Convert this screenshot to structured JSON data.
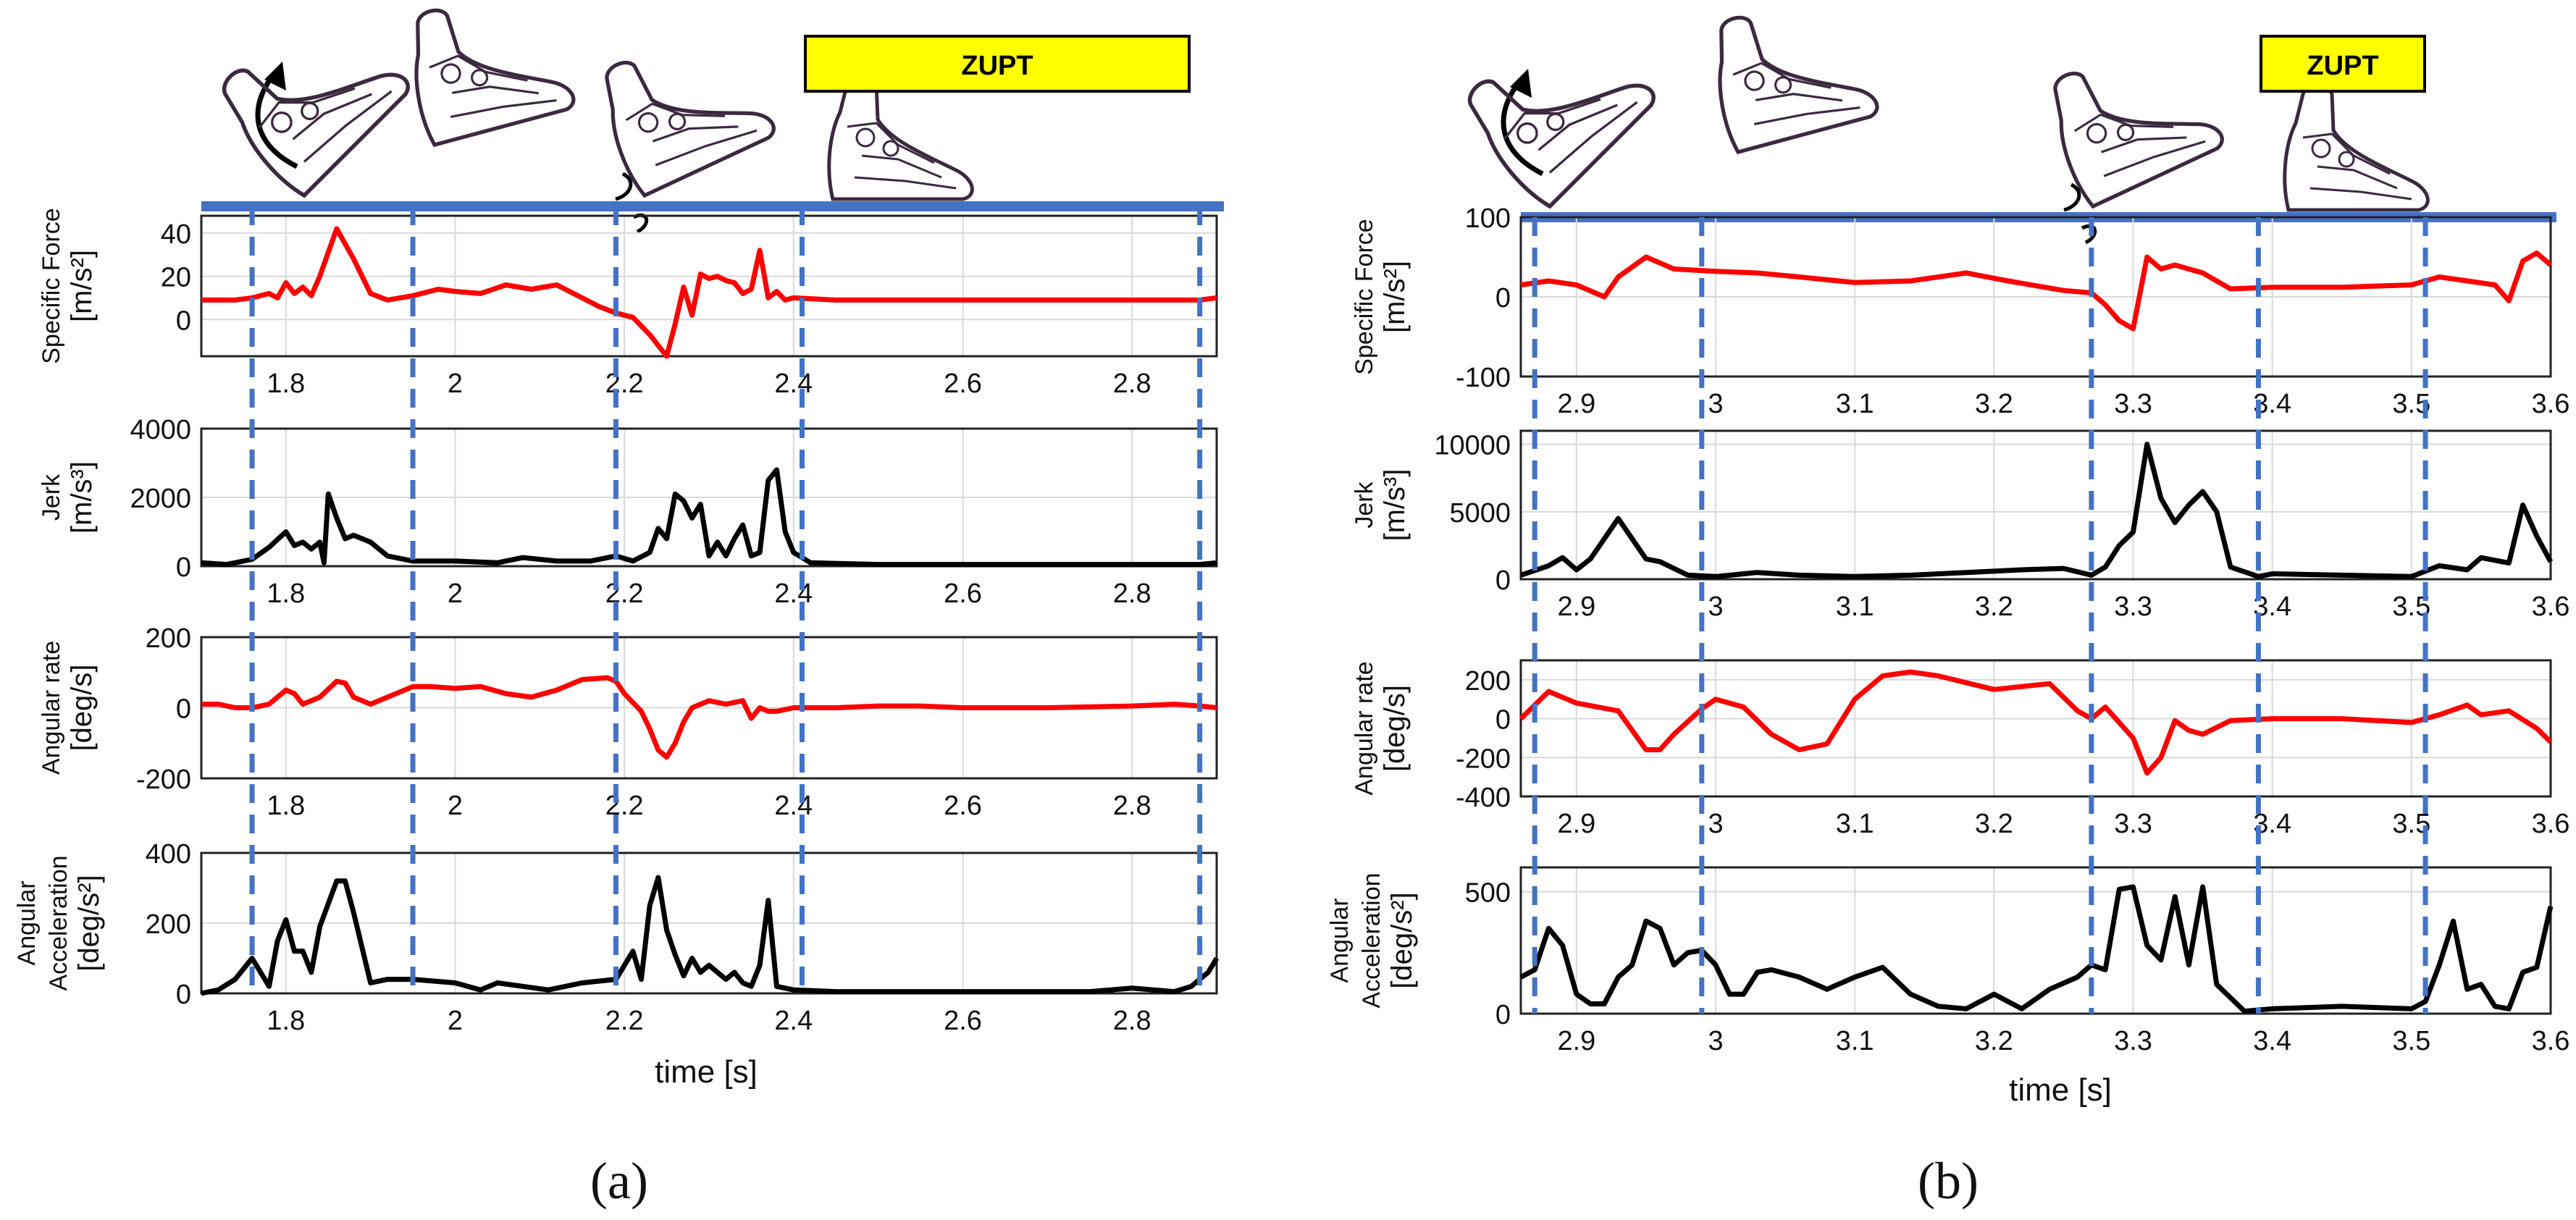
{
  "colors": {
    "specific_force": "#ff0000",
    "jerk": "#000000",
    "angular_rate": "#ff0000",
    "angular_acceleration": "#000000",
    "phase_lines": "#4472c4",
    "zupt_box": "#ffff00",
    "grid": "#d9d9d9"
  },
  "icons": [
    "arrow-curve-icon",
    "foot-heel-off-icon",
    "foot-swing-icon",
    "foot-heel-strike-icon",
    "foot-stance-icon"
  ],
  "panels": [
    {
      "label": "(a)",
      "zupt_label": "ZUPT",
      "xlabel": "time [s]",
      "x_range": [
        1.7,
        2.9
      ],
      "x_ticks": [
        1.8,
        2.0,
        2.2,
        2.4,
        2.6,
        2.8
      ],
      "x_tick_labels": [
        "1.8",
        "2",
        "2.2",
        "2.4",
        "2.6",
        "2.8"
      ],
      "phase_lines": [
        1.76,
        1.95,
        2.19,
        2.41,
        2.88
      ],
      "zupt_span": [
        2.41,
        2.88
      ]
    },
    {
      "label": "(b)",
      "zupt_label": "ZUPT",
      "xlabel": "time [s]",
      "x_range": [
        2.86,
        3.6
      ],
      "x_ticks": [
        2.9,
        3.0,
        3.1,
        3.2,
        3.3,
        3.4,
        3.5,
        3.6
      ],
      "x_tick_labels": [
        "2.9",
        "3",
        "3.1",
        "3.2",
        "3.3",
        "3.4",
        "3.5",
        "3.6"
      ],
      "phase_lines": [
        2.87,
        2.99,
        3.27,
        3.39,
        3.51
      ],
      "zupt_span": [
        3.39,
        3.51
      ]
    }
  ],
  "chart_data": [
    {
      "type": "line",
      "panel": "(a)",
      "ylabel": "Specific Force [m/s²]",
      "ylabel_lines": [
        "Specific Force",
        "[m/s²]"
      ],
      "ylim": [
        -17,
        48
      ],
      "yticks": [
        0,
        20,
        40
      ],
      "xlim": [
        1.7,
        2.9
      ],
      "xticks": [
        1.8,
        2.0,
        2.2,
        2.4,
        2.6,
        2.8
      ],
      "series": [
        {
          "x": [
            1.7,
            1.74,
            1.76,
            1.78,
            1.79,
            1.8,
            1.81,
            1.82,
            1.83,
            1.84,
            1.86,
            1.88,
            1.9,
            1.92,
            1.95,
            1.98,
            2.0,
            2.03,
            2.06,
            2.09,
            2.12,
            2.15,
            2.17,
            2.19,
            2.21,
            2.22,
            2.23,
            2.24,
            2.25,
            2.26,
            2.27,
            2.28,
            2.29,
            2.3,
            2.31,
            2.32,
            2.33,
            2.34,
            2.35,
            2.36,
            2.37,
            2.38,
            2.39,
            2.4,
            2.45,
            2.55,
            2.65,
            2.75,
            2.85,
            2.88,
            2.9
          ],
          "y": [
            9,
            9,
            10,
            12,
            10,
            17,
            12,
            15,
            11,
            20,
            42,
            28,
            12,
            9,
            11,
            14,
            13,
            12,
            16,
            14,
            16,
            10,
            6,
            3,
            1,
            -3,
            -7,
            -12,
            -18,
            -2,
            15,
            2,
            21,
            19,
            20,
            18,
            17,
            12,
            14,
            32,
            10,
            13,
            9,
            10,
            9,
            9,
            9,
            9,
            9,
            9,
            10
          ]
        }
      ]
    },
    {
      "type": "line",
      "panel": "(a)",
      "ylabel": "Jerk [m/s³]",
      "ylabel_lines": [
        "Jerk",
        "[m/s³]"
      ],
      "ylim": [
        0,
        4000
      ],
      "yticks": [
        0,
        2000,
        4000
      ],
      "xlim": [
        1.7,
        2.9
      ],
      "xticks": [
        1.8,
        2.0,
        2.2,
        2.4,
        2.6,
        2.8
      ],
      "series": [
        {
          "x": [
            1.7,
            1.73,
            1.76,
            1.78,
            1.8,
            1.81,
            1.82,
            1.83,
            1.84,
            1.845,
            1.85,
            1.86,
            1.87,
            1.88,
            1.9,
            1.92,
            1.95,
            2.0,
            2.05,
            2.08,
            2.12,
            2.16,
            2.19,
            2.21,
            2.23,
            2.24,
            2.25,
            2.26,
            2.27,
            2.28,
            2.29,
            2.3,
            2.31,
            2.32,
            2.33,
            2.34,
            2.35,
            2.36,
            2.37,
            2.38,
            2.39,
            2.4,
            2.42,
            2.5,
            2.6,
            2.7,
            2.8,
            2.88,
            2.9
          ],
          "y": [
            100,
            50,
            200,
            550,
            1000,
            600,
            700,
            500,
            700,
            100,
            2100,
            1400,
            800,
            900,
            700,
            300,
            150,
            150,
            100,
            250,
            150,
            150,
            300,
            150,
            400,
            1100,
            800,
            2100,
            1900,
            1400,
            1800,
            300,
            700,
            300,
            800,
            1200,
            300,
            400,
            2500,
            2800,
            1000,
            400,
            100,
            50,
            50,
            50,
            50,
            50,
            100
          ]
        }
      ]
    },
    {
      "type": "line",
      "panel": "(a)",
      "ylabel": "Angular rate [deg/s]",
      "ylabel_lines": [
        "Angular rate",
        "[deg/s]"
      ],
      "ylim": [
        -200,
        200
      ],
      "yticks": [
        -200,
        0,
        200
      ],
      "xlim": [
        1.7,
        2.9
      ],
      "xticks": [
        1.8,
        2.0,
        2.2,
        2.4,
        2.6,
        2.8
      ],
      "series": [
        {
          "x": [
            1.7,
            1.72,
            1.74,
            1.76,
            1.78,
            1.8,
            1.81,
            1.82,
            1.84,
            1.86,
            1.87,
            1.88,
            1.9,
            1.92,
            1.95,
            1.97,
            2.0,
            2.03,
            2.06,
            2.09,
            2.12,
            2.15,
            2.18,
            2.19,
            2.2,
            2.22,
            2.23,
            2.24,
            2.25,
            2.26,
            2.27,
            2.28,
            2.3,
            2.32,
            2.34,
            2.35,
            2.36,
            2.37,
            2.38,
            2.4,
            2.45,
            2.5,
            2.55,
            2.6,
            2.7,
            2.8,
            2.85,
            2.88,
            2.9
          ],
          "y": [
            10,
            10,
            0,
            0,
            10,
            50,
            40,
            10,
            30,
            75,
            70,
            30,
            10,
            30,
            60,
            60,
            55,
            60,
            40,
            30,
            50,
            80,
            85,
            75,
            40,
            -10,
            -60,
            -120,
            -140,
            -100,
            -40,
            0,
            20,
            10,
            20,
            -30,
            0,
            -10,
            -10,
            0,
            0,
            5,
            5,
            0,
            0,
            5,
            10,
            5,
            0
          ]
        }
      ]
    },
    {
      "type": "line",
      "panel": "(a)",
      "ylabel": "Angular Acceleration [deg/s²]",
      "ylabel_lines": [
        "Angular",
        "Acceleration",
        "[deg/s²]"
      ],
      "ylim": [
        0,
        400
      ],
      "yticks": [
        0,
        200,
        400
      ],
      "xlim": [
        1.7,
        2.9
      ],
      "xticks": [
        1.8,
        2.0,
        2.2,
        2.4,
        2.6,
        2.8
      ],
      "series": [
        {
          "x": [
            1.7,
            1.72,
            1.74,
            1.76,
            1.78,
            1.79,
            1.8,
            1.81,
            1.82,
            1.83,
            1.84,
            1.86,
            1.87,
            1.88,
            1.9,
            1.92,
            1.95,
            2.0,
            2.03,
            2.05,
            2.08,
            2.11,
            2.15,
            2.19,
            2.21,
            2.22,
            2.23,
            2.24,
            2.25,
            2.26,
            2.27,
            2.28,
            2.29,
            2.3,
            2.31,
            2.32,
            2.33,
            2.34,
            2.35,
            2.36,
            2.37,
            2.38,
            2.4,
            2.45,
            2.55,
            2.65,
            2.75,
            2.8,
            2.85,
            2.87,
            2.89,
            2.9
          ],
          "y": [
            0,
            10,
            40,
            100,
            20,
            150,
            210,
            120,
            120,
            60,
            190,
            320,
            320,
            230,
            30,
            40,
            40,
            30,
            10,
            30,
            20,
            10,
            30,
            40,
            120,
            40,
            250,
            330,
            180,
            110,
            50,
            100,
            60,
            80,
            60,
            40,
            60,
            30,
            20,
            80,
            265,
            20,
            10,
            5,
            5,
            5,
            5,
            15,
            5,
            20,
            60,
            100
          ]
        }
      ]
    },
    {
      "type": "line",
      "panel": "(b)",
      "ylabel": "Specific Force [m/s²]",
      "ylabel_lines": [
        "Specific Force",
        "[m/s²]"
      ],
      "ylim": [
        -100,
        100
      ],
      "yticks": [
        -100,
        0,
        100
      ],
      "xlim": [
        2.86,
        3.6
      ],
      "xticks": [
        2.9,
        3.0,
        3.1,
        3.2,
        3.3,
        3.4,
        3.5,
        3.6
      ],
      "series": [
        {
          "x": [
            2.86,
            2.88,
            2.9,
            2.92,
            2.93,
            2.95,
            2.97,
            3.0,
            3.03,
            3.06,
            3.1,
            3.14,
            3.18,
            3.21,
            3.25,
            3.27,
            3.28,
            3.29,
            3.3,
            3.31,
            3.32,
            3.33,
            3.35,
            3.37,
            3.4,
            3.45,
            3.5,
            3.52,
            3.54,
            3.56,
            3.57,
            3.58,
            3.59,
            3.6
          ],
          "y": [
            15,
            20,
            15,
            0,
            25,
            50,
            35,
            32,
            30,
            25,
            18,
            20,
            30,
            20,
            8,
            5,
            -10,
            -30,
            -40,
            50,
            35,
            40,
            30,
            10,
            12,
            12,
            15,
            25,
            20,
            15,
            -5,
            45,
            55,
            40
          ]
        }
      ]
    },
    {
      "type": "line",
      "panel": "(b)",
      "ylabel": "Jerk [m/s³]",
      "ylabel_lines": [
        "Jerk",
        "[m/s³]"
      ],
      "ylim": [
        0,
        11000
      ],
      "yticks": [
        0,
        5000,
        10000
      ],
      "xlim": [
        2.86,
        3.6
      ],
      "xticks": [
        2.9,
        3.0,
        3.1,
        3.2,
        3.3,
        3.4,
        3.5,
        3.6
      ],
      "series": [
        {
          "x": [
            2.86,
            2.88,
            2.89,
            2.9,
            2.91,
            2.92,
            2.93,
            2.94,
            2.95,
            2.96,
            2.98,
            3.0,
            3.03,
            3.06,
            3.1,
            3.14,
            3.18,
            3.22,
            3.25,
            3.27,
            3.28,
            3.29,
            3.3,
            3.31,
            3.32,
            3.33,
            3.34,
            3.35,
            3.36,
            3.37,
            3.39,
            3.4,
            3.45,
            3.5,
            3.52,
            3.54,
            3.55,
            3.57,
            3.58,
            3.59,
            3.6
          ],
          "y": [
            300,
            1000,
            1600,
            700,
            1500,
            3000,
            4500,
            3000,
            1500,
            1300,
            300,
            200,
            500,
            300,
            200,
            300,
            500,
            700,
            800,
            300,
            900,
            2500,
            3500,
            10000,
            6000,
            4200,
            5500,
            6500,
            5000,
            900,
            200,
            400,
            300,
            200,
            1000,
            700,
            1600,
            1200,
            5500,
            3200,
            1300
          ]
        }
      ]
    },
    {
      "type": "line",
      "panel": "(b)",
      "ylabel": "Angular rate [deg/s]",
      "ylabel_lines": [
        "Angular rate",
        "[deg/s]"
      ],
      "ylim": [
        -400,
        300
      ],
      "yticks": [
        -400,
        -200,
        0,
        200
      ],
      "xlim": [
        2.86,
        3.6
      ],
      "xticks": [
        2.9,
        3.0,
        3.1,
        3.2,
        3.3,
        3.4,
        3.5,
        3.6
      ],
      "series": [
        {
          "x": [
            2.86,
            2.88,
            2.9,
            2.93,
            2.95,
            2.96,
            2.97,
            2.99,
            3.0,
            3.02,
            3.04,
            3.06,
            3.08,
            3.1,
            3.12,
            3.14,
            3.16,
            3.2,
            3.24,
            3.26,
            3.27,
            3.28,
            3.3,
            3.31,
            3.32,
            3.33,
            3.34,
            3.35,
            3.37,
            3.4,
            3.45,
            3.5,
            3.52,
            3.54,
            3.55,
            3.57,
            3.59,
            3.6
          ],
          "y": [
            0,
            140,
            80,
            40,
            -160,
            -160,
            -80,
            50,
            100,
            60,
            -80,
            -160,
            -130,
            100,
            220,
            240,
            220,
            150,
            180,
            40,
            0,
            60,
            -100,
            -280,
            -200,
            -10,
            -60,
            -80,
            -10,
            0,
            0,
            -20,
            20,
            70,
            20,
            40,
            -50,
            -120
          ]
        }
      ]
    },
    {
      "type": "line",
      "panel": "(b)",
      "ylabel": "Angular Acceleration [deg/s²]",
      "ylabel_lines": [
        "Angular",
        "Acceleration",
        "[deg/s²]"
      ],
      "ylim": [
        0,
        600
      ],
      "yticks": [
        0,
        500
      ],
      "xlim": [
        2.86,
        3.6
      ],
      "xticks": [
        2.9,
        3.0,
        3.1,
        3.2,
        3.3,
        3.4,
        3.5,
        3.6
      ],
      "series": [
        {
          "x": [
            2.86,
            2.87,
            2.88,
            2.89,
            2.9,
            2.91,
            2.92,
            2.93,
            2.94,
            2.95,
            2.96,
            2.97,
            2.98,
            2.99,
            3.0,
            3.01,
            3.02,
            3.03,
            3.04,
            3.06,
            3.08,
            3.1,
            3.12,
            3.14,
            3.16,
            3.18,
            3.2,
            3.22,
            3.24,
            3.26,
            3.27,
            3.28,
            3.29,
            3.3,
            3.31,
            3.32,
            3.33,
            3.34,
            3.35,
            3.36,
            3.38,
            3.4,
            3.45,
            3.5,
            3.51,
            3.52,
            3.53,
            3.54,
            3.55,
            3.56,
            3.57,
            3.58,
            3.59,
            3.6
          ],
          "y": [
            150,
            180,
            350,
            280,
            80,
            40,
            40,
            150,
            200,
            380,
            350,
            200,
            250,
            260,
            200,
            80,
            80,
            170,
            180,
            150,
            100,
            150,
            190,
            80,
            30,
            20,
            80,
            20,
            100,
            150,
            200,
            180,
            510,
            520,
            280,
            220,
            480,
            200,
            520,
            120,
            10,
            20,
            30,
            20,
            50,
            200,
            380,
            100,
            120,
            30,
            20,
            170,
            190,
            440
          ]
        }
      ]
    }
  ]
}
